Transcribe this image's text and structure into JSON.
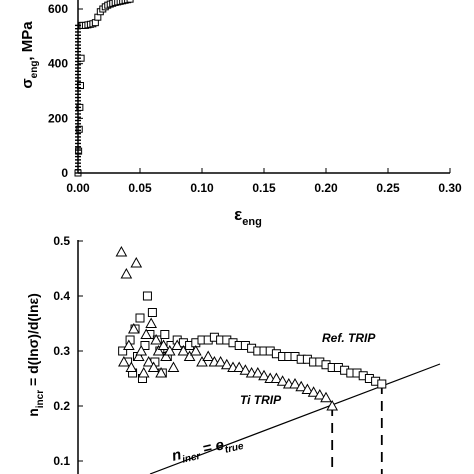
{
  "chart_data": [
    {
      "type": "line",
      "xlabel": "ε",
      "xlabel_sub": "eng",
      "ylabel": "σ",
      "ylabel_sub": "eng",
      "ylabel_unit": ", MPa",
      "xlim": [
        0,
        0.3
      ],
      "ylim": [
        0,
        660
      ],
      "x_ticks": [
        0.0,
        0.05,
        0.1,
        0.15,
        0.2,
        0.25,
        0.3
      ],
      "x_tick_labels": [
        "0.00",
        "0.05",
        "0.10",
        "0.15",
        "0.20",
        "0.25",
        "0.30"
      ],
      "y_ticks": [
        0,
        200,
        400,
        600
      ],
      "y_tick_labels": [
        "0",
        "200",
        "400",
        "600"
      ],
      "series": [
        {
          "marker": "square",
          "x": [
            0.0,
            0.0005,
            0.001,
            0.0015,
            0.002,
            0.0025,
            0.003,
            0.004,
            0.006,
            0.008,
            0.01,
            0.012,
            0.014,
            0.016,
            0.018,
            0.02,
            0.022,
            0.024,
            0.026,
            0.028,
            0.03,
            0.032,
            0.034,
            0.036,
            0.038,
            0.04,
            0.042
          ],
          "y": [
            0,
            80,
            160,
            240,
            320,
            420,
            540,
            540,
            540,
            542,
            544,
            546,
            550,
            570,
            590,
            600,
            608,
            614,
            618,
            621,
            624,
            626,
            628,
            630,
            632,
            634,
            636
          ]
        }
      ]
    },
    {
      "type": "scatter",
      "xlim": [
        0,
        0.3
      ],
      "ylim": [
        0.05,
        0.5
      ],
      "y_ticks": [
        0.1,
        0.2,
        0.3,
        0.4,
        0.5
      ],
      "y_tick_labels": [
        "0.1",
        "0.2",
        "0.3",
        "0.4",
        "0.5"
      ],
      "ylabel": "n",
      "ylabel_sub": "incr",
      "ylabel_rest": " = d(lnσ)/d(lnε)",
      "annotations": [
        {
          "text": "Ref. TRIP",
          "x": 0.202,
          "y": 0.312
        },
        {
          "text": "Ti TRIP",
          "x": 0.113,
          "y": 0.18
        },
        {
          "text_main": "n",
          "text_sub": "incr",
          "text_rest": " = e",
          "text_sub2": "true",
          "x": 0.075,
          "y": 0.06
        }
      ],
      "reference_line": {
        "label": "n_incr = e_true",
        "x": [
          0.07,
          0.29
        ],
        "y": [
          0.07,
          0.29
        ]
      },
      "series": [
        {
          "name": "Ref. TRIP",
          "marker": "square",
          "x": [
            0.036,
            0.04,
            0.042,
            0.044,
            0.046,
            0.048,
            0.05,
            0.052,
            0.054,
            0.056,
            0.058,
            0.06,
            0.062,
            0.064,
            0.066,
            0.068,
            0.07,
            0.072,
            0.075,
            0.08,
            0.085,
            0.09,
            0.095,
            0.1,
            0.105,
            0.11,
            0.115,
            0.12,
            0.125,
            0.13,
            0.135,
            0.14,
            0.145,
            0.15,
            0.155,
            0.16,
            0.165,
            0.17,
            0.175,
            0.18,
            0.185,
            0.19,
            0.195,
            0.2,
            0.205,
            0.21,
            0.215,
            0.22,
            0.225,
            0.23,
            0.235,
            0.24,
            0.245
          ],
          "y": [
            0.3,
            0.28,
            0.32,
            0.26,
            0.34,
            0.29,
            0.36,
            0.25,
            0.31,
            0.4,
            0.33,
            0.37,
            0.28,
            0.32,
            0.3,
            0.26,
            0.33,
            0.29,
            0.31,
            0.32,
            0.315,
            0.31,
            0.315,
            0.32,
            0.32,
            0.325,
            0.32,
            0.32,
            0.315,
            0.31,
            0.31,
            0.305,
            0.3,
            0.3,
            0.3,
            0.295,
            0.29,
            0.29,
            0.29,
            0.285,
            0.285,
            0.28,
            0.28,
            0.275,
            0.27,
            0.27,
            0.265,
            0.26,
            0.26,
            0.255,
            0.25,
            0.245,
            0.24
          ]
        },
        {
          "name": "Ti TRIP",
          "marker": "triangle",
          "x": [
            0.035,
            0.037,
            0.039,
            0.041,
            0.043,
            0.045,
            0.047,
            0.049,
            0.051,
            0.053,
            0.055,
            0.057,
            0.059,
            0.061,
            0.063,
            0.065,
            0.067,
            0.069,
            0.071,
            0.074,
            0.077,
            0.08,
            0.085,
            0.09,
            0.095,
            0.1,
            0.105,
            0.11,
            0.115,
            0.12,
            0.125,
            0.13,
            0.135,
            0.14,
            0.145,
            0.15,
            0.155,
            0.16,
            0.165,
            0.17,
            0.175,
            0.18,
            0.185,
            0.19,
            0.195,
            0.2,
            0.205
          ],
          "y": [
            0.48,
            0.28,
            0.44,
            0.31,
            0.27,
            0.34,
            0.46,
            0.29,
            0.3,
            0.26,
            0.33,
            0.28,
            0.35,
            0.27,
            0.32,
            0.3,
            0.26,
            0.31,
            0.29,
            0.3,
            0.27,
            0.31,
            0.3,
            0.29,
            0.3,
            0.28,
            0.29,
            0.28,
            0.28,
            0.275,
            0.27,
            0.27,
            0.265,
            0.26,
            0.26,
            0.255,
            0.25,
            0.25,
            0.245,
            0.24,
            0.24,
            0.235,
            0.23,
            0.225,
            0.22,
            0.215,
            0.2
          ]
        }
      ],
      "drop_lines": [
        {
          "x": 0.205,
          "y_top": 0.2,
          "y_bottom": 0.05
        },
        {
          "x": 0.245,
          "y_top": 0.24,
          "y_bottom": 0.05
        }
      ]
    }
  ]
}
